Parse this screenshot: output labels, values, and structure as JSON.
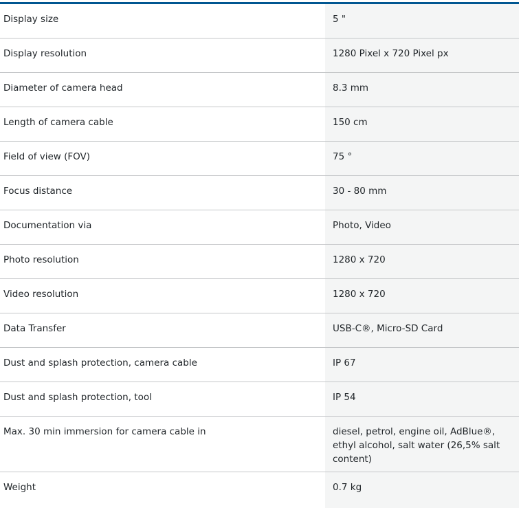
{
  "specs": [
    {
      "label": "Display size",
      "value": "5 \""
    },
    {
      "label": "Display resolution",
      "value": "1280 Pixel x 720 Pixel px"
    },
    {
      "label": "Diameter of camera head",
      "value": "8.3 mm"
    },
    {
      "label": "Length of camera cable",
      "value": "150 cm"
    },
    {
      "label": "Field of view (FOV)",
      "value": "75 °"
    },
    {
      "label": "Focus distance",
      "value": "30 - 80 mm"
    },
    {
      "label": "Documentation via",
      "value": "Photo, Video"
    },
    {
      "label": "Photo resolution",
      "value": "1280 x 720"
    },
    {
      "label": "Video resolution",
      "value": "1280 x 720"
    },
    {
      "label": "Data Transfer",
      "value": "USB-C®, Micro-SD Card"
    },
    {
      "label": "Dust and splash protection, camera cable",
      "value": "IP 67"
    },
    {
      "label": "Dust and splash protection, tool",
      "value": "IP 54"
    },
    {
      "label": "Max. 30 min immersion for camera cable in",
      "value": "diesel, petrol, engine oil, AdBlue®, ethyl alcohol, salt water (26,5% salt content)"
    },
    {
      "label": "Weight",
      "value": "0.7 kg"
    }
  ],
  "colors": {
    "accent": "#005691",
    "value_bg": "#f4f5f5",
    "divider": "#c4c6c8"
  }
}
